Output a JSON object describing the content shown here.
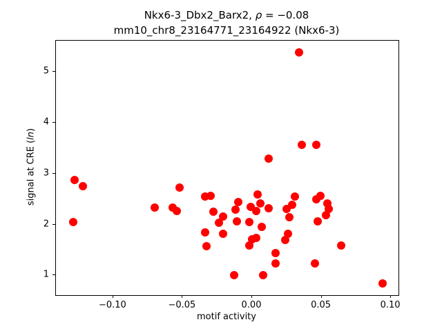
{
  "title": {
    "line1_prefix": "Nkx6-3_Dbx2_Barx2, ",
    "line1_rho": "ρ",
    "line1_suffix": " = −0.08",
    "line2": "mm10_chr8_23164771_23164922 (Nkx6-3)"
  },
  "xlabel": "motif activity",
  "ylabel": {
    "prefix": "signal at CRE (",
    "italic": "ln",
    "suffix": ")"
  },
  "chart_data": {
    "type": "scatter",
    "title": "Nkx6-3_Dbx2_Barx2, ρ = −0.08 / mm10_chr8_23164771_23164922 (Nkx6-3)",
    "xlabel": "motif activity",
    "ylabel": "signal at CRE (ln)",
    "marker_color": "#ff0000",
    "marker_diameter_px": 12,
    "grid": false,
    "legend": null,
    "xlim": [
      -0.1412,
      0.1054
    ],
    "ylim": [
      0.612,
      5.613
    ],
    "xticks": {
      "values": [
        -0.1,
        -0.05,
        0.0,
        0.05,
        0.1
      ],
      "labels": [
        "−0.10",
        "−0.05",
        "0.00",
        "0.05",
        "0.10"
      ]
    },
    "yticks": {
      "values": [
        1,
        2,
        3,
        4,
        5
      ],
      "labels": [
        "1",
        "2",
        "3",
        "4",
        "5"
      ]
    },
    "points": [
      [
        -0.128,
        2.88
      ],
      [
        -0.122,
        2.75
      ],
      [
        -0.129,
        2.05
      ],
      [
        -0.07,
        2.33
      ],
      [
        -0.052,
        2.73
      ],
      [
        -0.057,
        2.33
      ],
      [
        -0.054,
        2.26
      ],
      [
        -0.034,
        2.55
      ],
      [
        -0.03,
        2.57
      ],
      [
        -0.028,
        2.25
      ],
      [
        -0.021,
        2.16
      ],
      [
        -0.024,
        2.03
      ],
      [
        -0.034,
        1.85
      ],
      [
        -0.021,
        1.82
      ],
      [
        -0.033,
        1.58
      ],
      [
        0.004,
        2.59
      ],
      [
        0.006,
        2.42
      ],
      [
        -0.01,
        2.44
      ],
      [
        -0.012,
        2.3
      ],
      [
        -0.001,
        2.35
      ],
      [
        0.003,
        2.27
      ],
      [
        0.012,
        2.32
      ],
      [
        -0.011,
        2.06
      ],
      [
        -0.002,
        2.05
      ],
      [
        0.007,
        1.95
      ],
      [
        0.0,
        1.71
      ],
      [
        0.003,
        1.74
      ],
      [
        -0.002,
        1.59
      ],
      [
        -0.013,
        1.01
      ],
      [
        0.008,
        1.0
      ],
      [
        0.012,
        3.29
      ],
      [
        0.034,
        5.39
      ],
      [
        0.036,
        3.57
      ],
      [
        0.046,
        3.57
      ],
      [
        0.031,
        2.55
      ],
      [
        0.046,
        2.5
      ],
      [
        0.049,
        2.57
      ],
      [
        0.054,
        2.42
      ],
      [
        0.055,
        2.31
      ],
      [
        0.053,
        2.19
      ],
      [
        0.047,
        2.06
      ],
      [
        0.025,
        2.31
      ],
      [
        0.029,
        2.39
      ],
      [
        0.027,
        2.14
      ],
      [
        0.026,
        1.82
      ],
      [
        0.024,
        1.7
      ],
      [
        0.017,
        1.44
      ],
      [
        0.017,
        1.24
      ],
      [
        0.045,
        1.23
      ],
      [
        0.064,
        1.59
      ],
      [
        0.094,
        0.84
      ]
    ]
  }
}
